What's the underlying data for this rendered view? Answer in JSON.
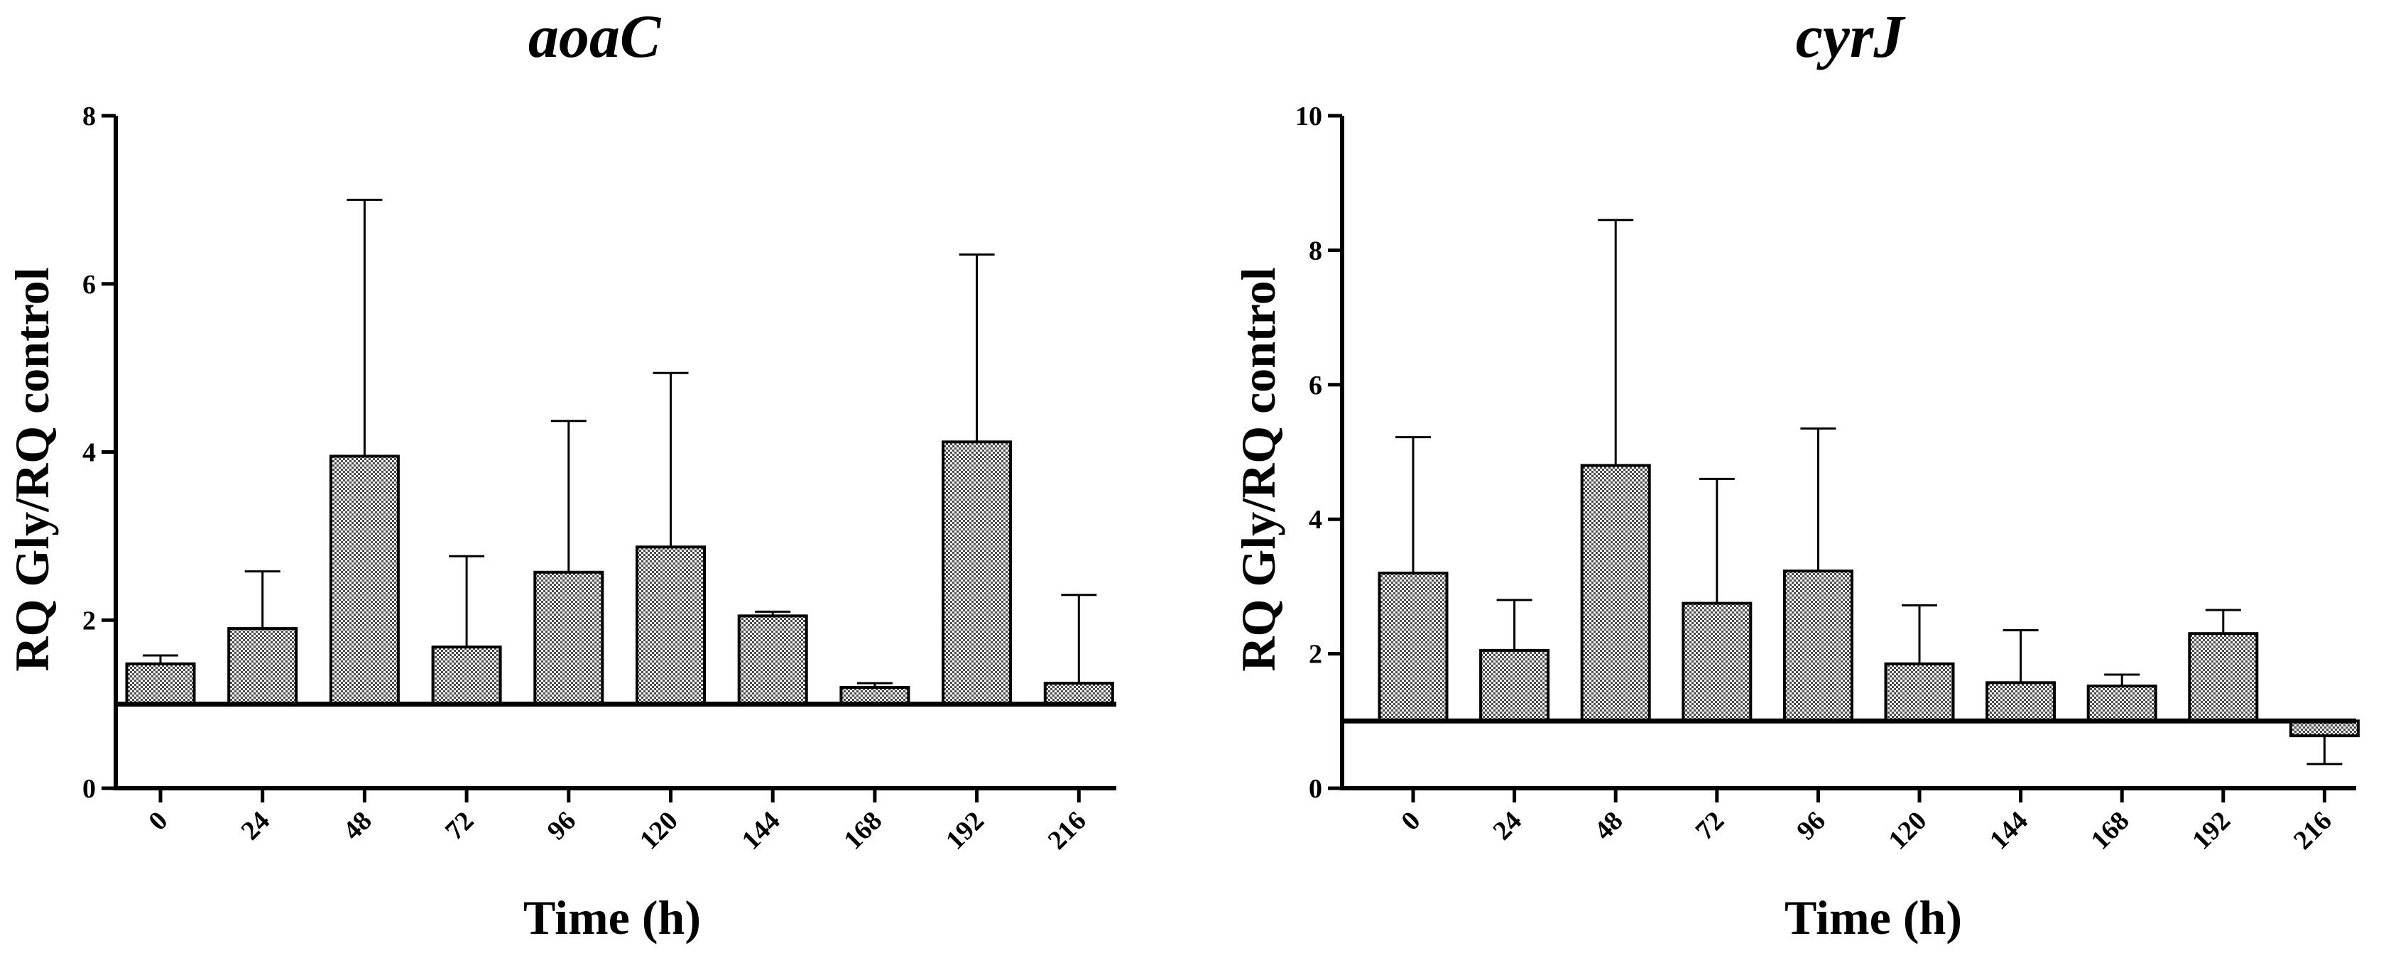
{
  "chart_data": [
    {
      "type": "bar",
      "title": "aoaC",
      "xlabel": "Time (h)",
      "ylabel": "RQ Gly/RQ control",
      "categories": [
        "0",
        "24",
        "48",
        "72",
        "96",
        "120",
        "144",
        "168",
        "192",
        "216"
      ],
      "values": [
        1.48,
        1.9,
        3.95,
        1.68,
        2.57,
        2.87,
        2.05,
        1.2,
        4.12,
        1.25
      ],
      "error_bars": [
        0.1,
        0.68,
        3.05,
        1.08,
        1.8,
        2.07,
        0.05,
        0.05,
        2.23,
        1.05
      ],
      "baseline": 1,
      "ylim": [
        0,
        8
      ],
      "yticks": [
        0,
        2,
        4,
        6,
        8
      ],
      "grid": false,
      "bar_pattern": "checkered"
    },
    {
      "type": "bar",
      "title": "cyrJ",
      "xlabel": "Time (h)",
      "ylabel": "RQ Gly/RQ control",
      "categories": [
        "0",
        "24",
        "48",
        "72",
        "96",
        "120",
        "144",
        "168",
        "192",
        "216"
      ],
      "values": [
        3.2,
        2.05,
        4.8,
        2.75,
        3.23,
        1.85,
        1.57,
        1.52,
        2.3,
        0.78
      ],
      "error_bars": [
        2.02,
        0.75,
        3.65,
        1.85,
        2.12,
        0.87,
        0.78,
        0.17,
        0.35,
        0.42
      ],
      "baseline": 1,
      "ylim": [
        0,
        10
      ],
      "yticks": [
        0,
        2,
        4,
        6,
        8,
        10
      ],
      "grid": false,
      "bar_pattern": "checkered"
    }
  ]
}
